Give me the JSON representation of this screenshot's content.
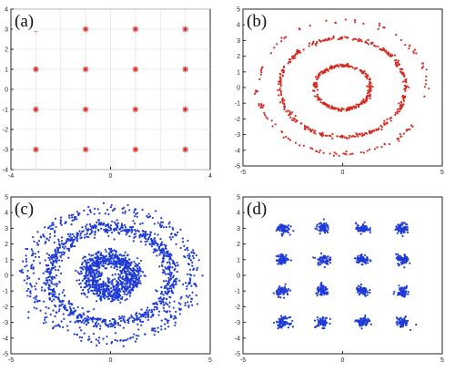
{
  "colors": {
    "red": "#d42a20",
    "blue": "#1f3bd6"
  },
  "chart_data": [
    {
      "type": "scatter",
      "panel_label": "(a)",
      "marker": "star",
      "color": "#d42a20",
      "xlim": [
        -4,
        4
      ],
      "ylim": [
        -4,
        4
      ],
      "xticks": [
        -4,
        0,
        4
      ],
      "yticks": [
        -4,
        -3,
        -2,
        -1,
        0,
        1,
        2,
        3,
        4
      ],
      "grid": true,
      "points": [
        [
          -3,
          3
        ],
        [
          -1,
          3
        ],
        [
          1,
          3
        ],
        [
          3,
          3
        ],
        [
          -3,
          1
        ],
        [
          -1,
          1
        ],
        [
          1,
          1
        ],
        [
          3,
          1
        ],
        [
          -3,
          -1
        ],
        [
          -1,
          -1
        ],
        [
          1,
          -1
        ],
        [
          3,
          -1
        ],
        [
          -3,
          -3
        ],
        [
          -1,
          -3
        ],
        [
          1,
          -3
        ],
        [
          3,
          -3
        ]
      ]
    },
    {
      "type": "scatter",
      "panel_label": "(b)",
      "color": "#d42a20",
      "xlim": [
        -5,
        5
      ],
      "ylim": [
        -5,
        5
      ],
      "xticks": [
        -5,
        0,
        5
      ],
      "yticks": [
        -5,
        -4,
        -3,
        -2,
        -1,
        0,
        1,
        2,
        3,
        4,
        5
      ],
      "grid": false,
      "rings": [
        {
          "radius": 1.4,
          "spread": 0.05,
          "points": 260
        },
        {
          "radius": 3.15,
          "spread": 0.06,
          "points": 340
        },
        {
          "radius": 4.25,
          "spread": 0.07,
          "points": 120
        }
      ]
    },
    {
      "type": "scatter",
      "panel_label": "(c)",
      "color": "#1f3bd6",
      "xlim": [
        -5,
        5
      ],
      "ylim": [
        -5,
        5
      ],
      "xticks": [
        -5,
        0,
        5
      ],
      "yticks": [
        -5,
        -4,
        -3,
        -2,
        -1,
        0,
        1,
        2,
        3,
        4,
        5
      ],
      "grid": false,
      "rings": [
        {
          "radius": 1.1,
          "spread": 0.3,
          "points": 900
        },
        {
          "radius": 3.05,
          "spread": 0.22,
          "points": 900
        },
        {
          "radius": 4.15,
          "spread": 0.22,
          "points": 380
        }
      ]
    },
    {
      "type": "scatter",
      "panel_label": "(d)",
      "color": "#1f3bd6",
      "xlim": [
        -5,
        5
      ],
      "ylim": [
        -5,
        5
      ],
      "xticks": [
        -5,
        0,
        5
      ],
      "yticks": [
        -5,
        -4,
        -3,
        -2,
        -1,
        0,
        1,
        2,
        3,
        4,
        5
      ],
      "grid": false,
      "clusters": {
        "centers": [
          [
            -3,
            3
          ],
          [
            -1,
            3
          ],
          [
            1,
            3
          ],
          [
            3,
            3
          ],
          [
            -3,
            1
          ],
          [
            -1,
            1
          ],
          [
            1,
            1
          ],
          [
            3,
            1
          ],
          [
            -3,
            -1
          ],
          [
            -1,
            -1
          ],
          [
            1,
            -1
          ],
          [
            3,
            -1
          ],
          [
            -3,
            -3
          ],
          [
            -1,
            -3
          ],
          [
            1,
            -3
          ],
          [
            3,
            -3
          ]
        ],
        "spread": 0.16,
        "points_per_cluster": 70
      }
    }
  ]
}
